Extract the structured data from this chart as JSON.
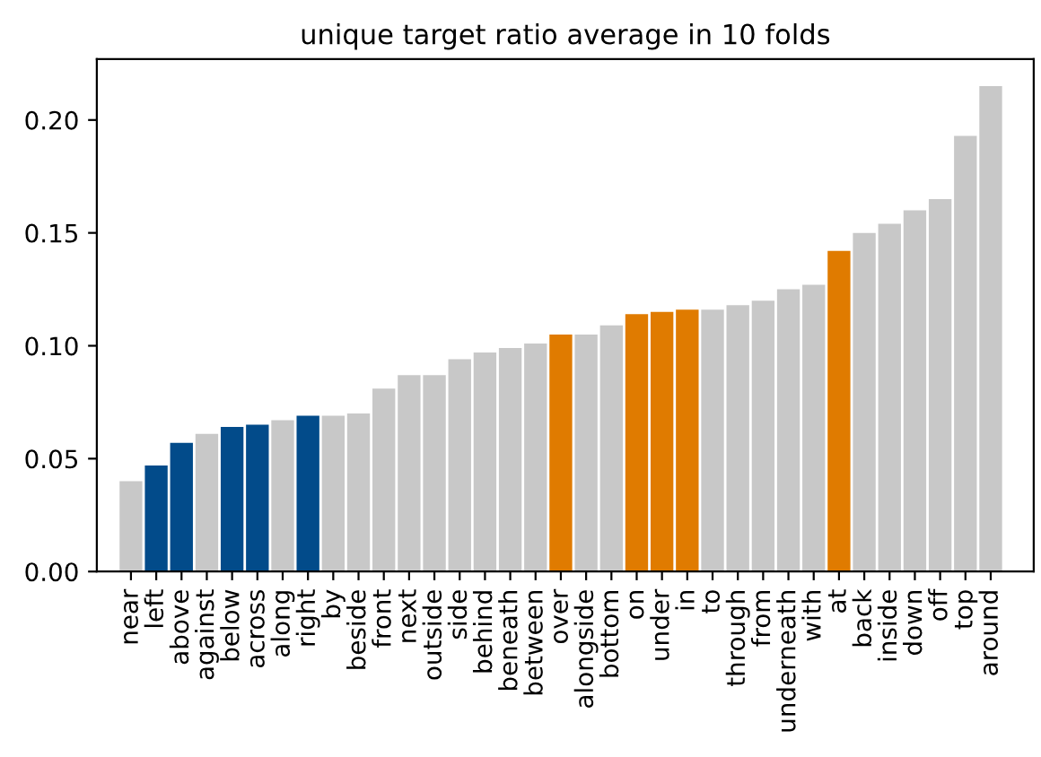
{
  "chart_data": {
    "type": "bar",
    "title": "unique target ratio average in 10 folds",
    "categories": [
      "near",
      "left",
      "above",
      "against",
      "below",
      "across",
      "along",
      "right",
      "by",
      "beside",
      "front",
      "next",
      "outside",
      "side",
      "behind",
      "beneath",
      "between",
      "over",
      "alongside",
      "bottom",
      "on",
      "under",
      "in",
      "to",
      "through",
      "from",
      "underneath",
      "with",
      "at",
      "back",
      "inside",
      "down",
      "off",
      "top",
      "around"
    ],
    "values": [
      0.04,
      0.047,
      0.057,
      0.061,
      0.064,
      0.065,
      0.067,
      0.069,
      0.069,
      0.07,
      0.081,
      0.087,
      0.087,
      0.094,
      0.097,
      0.099,
      0.101,
      0.105,
      0.105,
      0.109,
      0.114,
      0.115,
      0.116,
      0.116,
      0.118,
      0.12,
      0.125,
      0.127,
      0.142,
      0.15,
      0.154,
      0.16,
      0.165,
      0.193,
      0.215
    ],
    "colors": [
      "#c8c8c8",
      "#024b8a",
      "#024b8a",
      "#c8c8c8",
      "#024b8a",
      "#024b8a",
      "#c8c8c8",
      "#024b8a",
      "#c8c8c8",
      "#c8c8c8",
      "#c8c8c8",
      "#c8c8c8",
      "#c8c8c8",
      "#c8c8c8",
      "#c8c8c8",
      "#c8c8c8",
      "#c8c8c8",
      "#e07b00",
      "#c8c8c8",
      "#c8c8c8",
      "#e07b00",
      "#e07b00",
      "#e07b00",
      "#c8c8c8",
      "#c8c8c8",
      "#c8c8c8",
      "#c8c8c8",
      "#c8c8c8",
      "#e07b00",
      "#c8c8c8",
      "#c8c8c8",
      "#c8c8c8",
      "#c8c8c8",
      "#c8c8c8",
      "#c8c8c8"
    ],
    "ylim": [
      0,
      0.227
    ],
    "yticks": [
      {
        "value": 0,
        "label": "0.00"
      },
      {
        "value": 0.05,
        "label": "0.05"
      },
      {
        "value": 0.1,
        "label": "0.10"
      },
      {
        "value": 0.15,
        "label": "0.15"
      },
      {
        "value": 0.2,
        "label": "0.20"
      }
    ],
    "grid": false
  }
}
